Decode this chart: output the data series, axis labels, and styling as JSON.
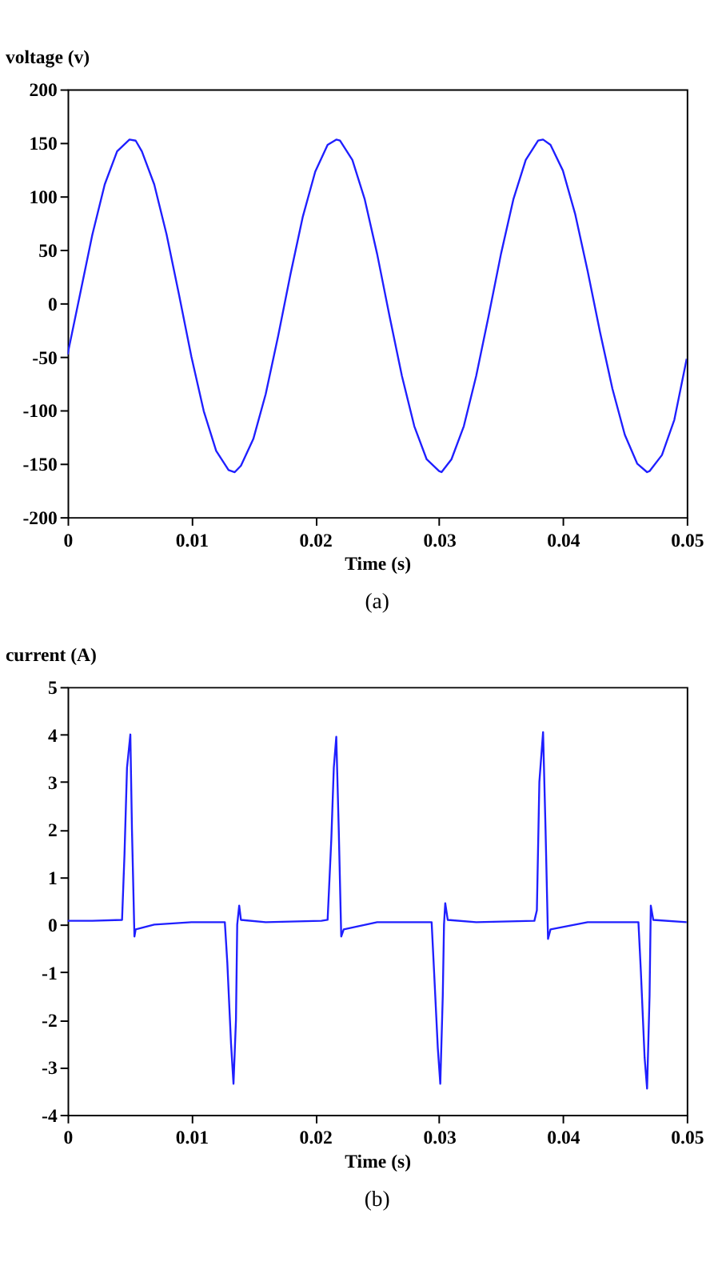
{
  "chart_data": [
    {
      "type": "line",
      "xlabel": "Time (s)",
      "ylabel": "voltage (v)",
      "annotations": [
        "(a)"
      ],
      "xlim": [
        0,
        0.05
      ],
      "xticks": [
        0,
        0.01,
        0.02,
        0.03,
        0.04,
        0.05
      ],
      "ylim": [
        -200,
        200
      ],
      "yticks": [
        -200,
        -150,
        -100,
        -50,
        0,
        50,
        100,
        150,
        200
      ],
      "grid": false,
      "series": [
        {
          "color": "#1f1fff",
          "x": [
            0,
            0.001,
            0.002,
            0.003,
            0.004,
            0.005,
            0.0055,
            0.006,
            0.007,
            0.008,
            0.009,
            0.01,
            0.011,
            0.012,
            0.013,
            0.0135,
            0.014,
            0.015,
            0.016,
            0.017,
            0.018,
            0.019,
            0.02,
            0.021,
            0.0217,
            0.022,
            0.023,
            0.024,
            0.025,
            0.026,
            0.027,
            0.028,
            0.029,
            0.03,
            0.0302,
            0.031,
            0.032,
            0.033,
            0.034,
            0.035,
            0.036,
            0.037,
            0.038,
            0.0384,
            0.039,
            0.04,
            0.041,
            0.042,
            0.043,
            0.044,
            0.045,
            0.046,
            0.0468,
            0.047,
            0.048,
            0.049,
            0.05
          ],
          "values": [
            -48,
            8,
            64,
            111,
            142,
            153,
            152,
            142,
            111,
            64,
            8,
            -50,
            -101,
            -138,
            -156,
            -158,
            -152,
            -127,
            -85,
            -31,
            27,
            81,
            123,
            148,
            153,
            152,
            134,
            97,
            46,
            -12,
            -68,
            -115,
            -146,
            -157,
            -158,
            -146,
            -115,
            -68,
            -12,
            46,
            97,
            134,
            152,
            153,
            148,
            124,
            83,
            30,
            -27,
            -80,
            -123,
            -150,
            -158,
            -157,
            -142,
            -109,
            -52
          ]
        }
      ]
    },
    {
      "type": "line",
      "xlabel": "Time (s)",
      "ylabel": "current (A)",
      "annotations": [
        "(b)"
      ],
      "xlim": [
        0,
        0.05
      ],
      "xticks": [
        0,
        0.01,
        0.02,
        0.03,
        0.04,
        0.05
      ],
      "ylim": [
        -4,
        5
      ],
      "yticks": [
        -4,
        -3,
        -2,
        -1,
        0,
        1,
        2,
        3,
        4,
        5
      ],
      "grid": false,
      "series": [
        {
          "color": "#1f1fff",
          "x": [
            0,
            0.002,
            0.0044,
            0.0046,
            0.0048,
            0.00507,
            0.0052,
            0.0054,
            0.0055,
            0.007,
            0.01,
            0.0127,
            0.0129,
            0.0132,
            0.0134,
            0.0136,
            0.0137,
            0.01386,
            0.014,
            0.016,
            0.0205,
            0.021,
            0.0213,
            0.0215,
            0.0217,
            0.0219,
            0.0221,
            0.0223,
            0.025,
            0.0294,
            0.0296,
            0.0299,
            0.0301,
            0.0303,
            0.0304,
            0.0305,
            0.0307,
            0.033,
            0.0377,
            0.0379,
            0.0381,
            0.0384,
            0.0386,
            0.0388,
            0.039,
            0.042,
            0.0461,
            0.0463,
            0.0466,
            0.0468,
            0.047,
            0.0471,
            0.0473,
            0.05
          ],
          "values": [
            0.08,
            0.08,
            0.1,
            1.5,
            3.3,
            4.0,
            2.0,
            -0.25,
            -0.1,
            0.0,
            0.05,
            0.05,
            -0.8,
            -2.5,
            -3.35,
            -2.0,
            0.0,
            0.4,
            0.1,
            0.05,
            0.08,
            0.1,
            1.8,
            3.3,
            3.95,
            2.0,
            -0.25,
            -0.1,
            0.05,
            0.05,
            -1.0,
            -2.6,
            -3.35,
            -1.5,
            0.0,
            0.45,
            0.1,
            0.05,
            0.08,
            0.3,
            3.0,
            4.05,
            2.0,
            -0.3,
            -0.1,
            0.05,
            0.05,
            -1.0,
            -2.8,
            -3.45,
            -1.5,
            0.4,
            0.1,
            0.05
          ]
        }
      ]
    }
  ]
}
